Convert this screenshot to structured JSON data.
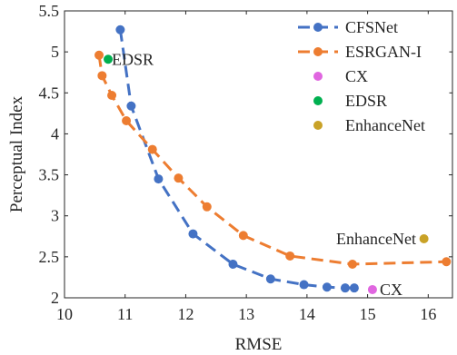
{
  "chart_data": {
    "type": "line",
    "xlabel": "RMSE",
    "ylabel": "Perceptual Index",
    "xlim": [
      10,
      16.4
    ],
    "ylim": [
      2,
      5.5
    ],
    "xticks": [
      "10",
      "11",
      "12",
      "13",
      "14",
      "15",
      "16"
    ],
    "yticks": [
      "2",
      "2.5",
      "3",
      "3.5",
      "4",
      "4.5",
      "5",
      "5.5"
    ],
    "grid": false,
    "legend_position": "top-right",
    "series": [
      {
        "name": "CFSNet",
        "style": "dashed-line-markers",
        "color": "#4472C4",
        "x": [
          10.92,
          11.1,
          11.55,
          12.12,
          12.78,
          13.4,
          13.95,
          14.33,
          14.63,
          14.78
        ],
        "y": [
          5.27,
          4.34,
          3.45,
          2.78,
          2.41,
          2.23,
          2.16,
          2.13,
          2.12,
          2.12
        ]
      },
      {
        "name": "ESRGAN-I",
        "style": "dashed-line-markers",
        "color": "#ED7D31",
        "x": [
          10.57,
          10.62,
          10.78,
          11.02,
          11.45,
          11.88,
          12.35,
          12.95,
          13.72,
          14.75,
          16.3
        ],
        "y": [
          4.96,
          4.71,
          4.47,
          4.16,
          3.81,
          3.46,
          3.11,
          2.76,
          2.51,
          2.41,
          2.44
        ]
      },
      {
        "name": "CX",
        "style": "marker",
        "color": "#E066E0",
        "x": [
          15.08
        ],
        "y": [
          2.1
        ]
      },
      {
        "name": "EDSR",
        "style": "marker",
        "color": "#00B050",
        "x": [
          10.72
        ],
        "y": [
          4.91
        ]
      },
      {
        "name": "EnhanceNet",
        "style": "marker",
        "color": "#C9A227",
        "x": [
          15.93
        ],
        "y": [
          2.72
        ]
      }
    ],
    "annotations": [
      {
        "text": "EDSR",
        "x": 10.78,
        "y": 4.91,
        "anchor": "start"
      },
      {
        "text": "EnhanceNet",
        "x": 15.8,
        "y": 2.72,
        "anchor": "end"
      },
      {
        "text": "CX",
        "x": 15.2,
        "y": 2.1,
        "anchor": "start"
      }
    ]
  }
}
